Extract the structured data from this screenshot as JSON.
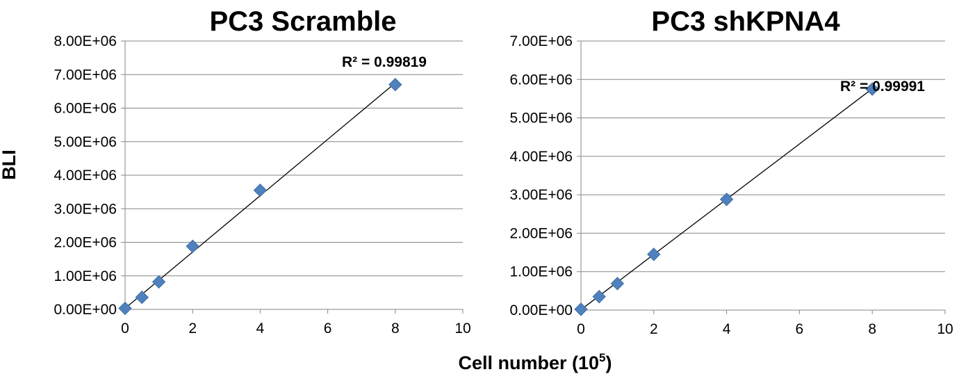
{
  "shared": {
    "ylabel": "BLI",
    "xlabel_main": "Cell number (10",
    "xlabel_sup": "5",
    "xlabel_close": ")"
  },
  "chart_data": [
    {
      "type": "scatter",
      "title": "PC3 Scramble",
      "xlabel": "Cell number (10^5)",
      "ylabel": "BLI",
      "xlim": [
        0,
        10
      ],
      "ylim": [
        0,
        8000000
      ],
      "xticks": [
        "0",
        "2",
        "4",
        "6",
        "8",
        "10"
      ],
      "yticks": [
        "0.00E+00",
        "1.00E+06",
        "2.00E+06",
        "3.00E+06",
        "4.00E+06",
        "5.00E+06",
        "6.00E+06",
        "7.00E+06",
        "8.00E+06"
      ],
      "grid": true,
      "points": [
        {
          "x": 0,
          "y": 30000
        },
        {
          "x": 0.5,
          "y": 360000
        },
        {
          "x": 1,
          "y": 820000
        },
        {
          "x": 2,
          "y": 1880000
        },
        {
          "x": 4,
          "y": 3550000
        },
        {
          "x": 8,
          "y": 6700000
        }
      ],
      "trendline": {
        "x": [
          0,
          8
        ],
        "y": [
          30000,
          6750000
        ]
      },
      "annotation": "R² = 0.99819",
      "color": "#4f81bd"
    },
    {
      "type": "scatter",
      "title": "PC3 shKPNA4",
      "xlabel": "Cell number (10^5)",
      "ylabel": "",
      "xlim": [
        0,
        10
      ],
      "ylim": [
        0,
        7000000
      ],
      "xticks": [
        "0",
        "2",
        "4",
        "6",
        "8",
        "10"
      ],
      "yticks": [
        "0.00E+00",
        "1.00E+06",
        "2.00E+06",
        "3.00E+06",
        "4.00E+06",
        "5.00E+06",
        "6.00E+06",
        "7.00E+06"
      ],
      "grid": true,
      "points": [
        {
          "x": 0,
          "y": 20000
        },
        {
          "x": 0.5,
          "y": 350000
        },
        {
          "x": 1,
          "y": 690000
        },
        {
          "x": 2,
          "y": 1450000
        },
        {
          "x": 4,
          "y": 2880000
        },
        {
          "x": 8,
          "y": 5750000
        }
      ],
      "trendline": {
        "x": [
          0,
          8
        ],
        "y": [
          10000,
          5760000
        ]
      },
      "annotation": "R² = 0.99991",
      "color": "#4f81bd"
    }
  ]
}
